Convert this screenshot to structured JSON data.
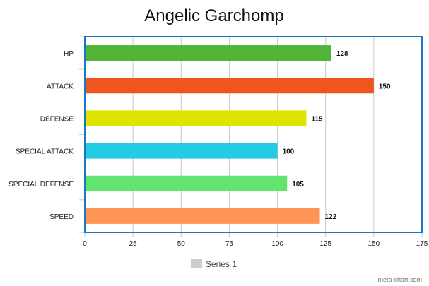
{
  "chart_data": {
    "type": "bar",
    "orientation": "horizontal",
    "title": "Angelic Garchomp",
    "categories": [
      "HP",
      "ATTACK",
      "DEFENSE",
      "SPECIAL ATTACK",
      "SPECIAL DEFENSE",
      "SPEED"
    ],
    "series": [
      {
        "name": "Series 1",
        "values": [
          128,
          150,
          115,
          100,
          105,
          122
        ]
      }
    ],
    "bar_colors": [
      "#52b436",
      "#ee561f",
      "#dfe300",
      "#23cbe5",
      "#62e56f",
      "#ff9555"
    ],
    "xlim": [
      0,
      175
    ],
    "x_ticks": [
      0,
      25,
      50,
      75,
      100,
      125,
      150,
      175
    ],
    "grid": true,
    "legend": "bottom",
    "legend_swatch_color": "#cccccc",
    "frame_color": "#1a78c2",
    "credit": "meta-chart.com"
  }
}
